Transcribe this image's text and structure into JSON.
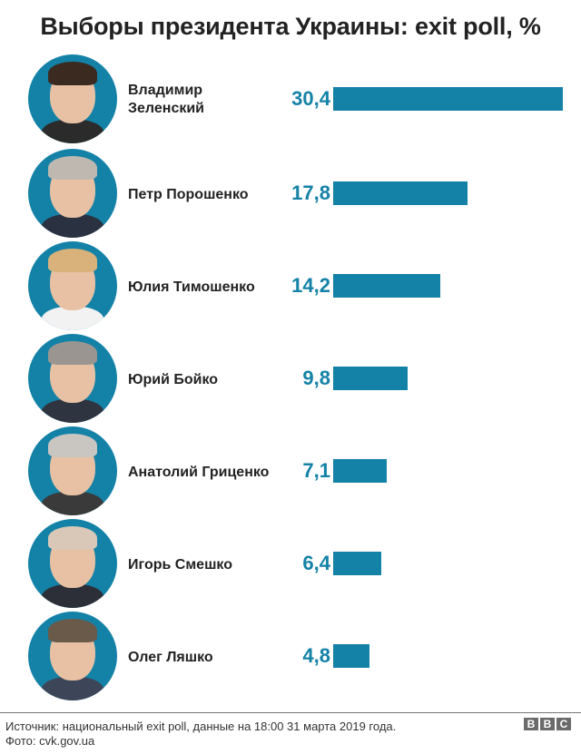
{
  "title": "Выборы президента Украины: exit poll, %",
  "colors": {
    "bar": "#1482a7",
    "value": "#1482a7",
    "text": "#222222",
    "avatar_bg": "#1482a7"
  },
  "candidates": [
    {
      "name_line1": "Владимир",
      "name_line2": "Зеленский",
      "value_label": "30,4",
      "value": 30.4,
      "hair": "#3a2a20",
      "suit": "#2b2b2b"
    },
    {
      "name_line1": "Петр Порошенко",
      "name_line2": "",
      "value_label": "17,8",
      "value": 17.8,
      "hair": "#bfb8b0",
      "suit": "#2a3140"
    },
    {
      "name_line1": "Юлия Тимошенко",
      "name_line2": "",
      "value_label": "14,2",
      "value": 14.2,
      "hair": "#d8b27a",
      "suit": "#f2f2f2"
    },
    {
      "name_line1": "Юрий Бойко",
      "name_line2": "",
      "value_label": "9,8",
      "value": 9.8,
      "hair": "#9a9590",
      "suit": "#2e3440"
    },
    {
      "name_line1": "Анатолий Гриценко",
      "name_line2": "",
      "value_label": "7,1",
      "value": 7.1,
      "hair": "#c9c6c2",
      "suit": "#3a3a3a"
    },
    {
      "name_line1": "Игорь Смешко",
      "name_line2": "",
      "value_label": "6,4",
      "value": 6.4,
      "hair": "#d9c8b8",
      "suit": "#2c2f38"
    },
    {
      "name_line1": "Олег Ляшко",
      "name_line2": "",
      "value_label": "4,8",
      "value": 4.8,
      "hair": "#6a5a4a",
      "suit": "#3c4658"
    }
  ],
  "footer": {
    "source": "Источник: национальный exit poll, данные на 18:00 31 марта 2019 года.",
    "photo": "Фото: cvk.gov.ua",
    "logo": [
      "B",
      "B",
      "C"
    ]
  },
  "chart_data": {
    "type": "bar",
    "orientation": "horizontal",
    "title": "Выборы президента Украины: exit poll, %",
    "categories": [
      "Владимир Зеленский",
      "Петр Порошенко",
      "Юлия Тимошенко",
      "Юрий Бойко",
      "Анатолий Гриценко",
      "Игорь Смешко",
      "Олег Ляшко"
    ],
    "values": [
      30.4,
      17.8,
      14.2,
      9.8,
      7.1,
      6.4,
      4.8
    ],
    "xlabel": "",
    "ylabel": "",
    "grid": false,
    "legend": null,
    "data_labels": true
  }
}
